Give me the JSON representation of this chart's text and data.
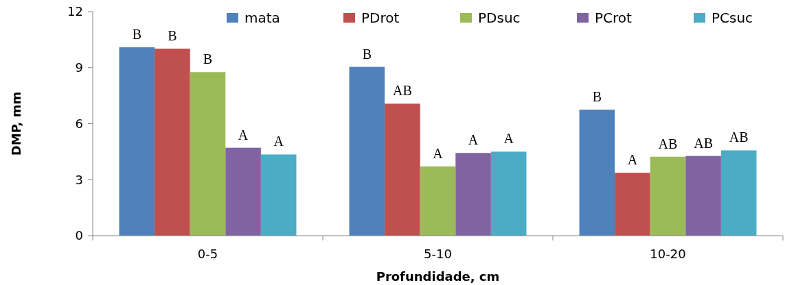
{
  "chart_data": {
    "type": "bar",
    "xlabel": "Profundidade, cm",
    "ylabel": "DMP, mm",
    "categories": [
      "0-5",
      "5-10",
      "10-20"
    ],
    "series": [
      {
        "name": "mata",
        "color": "#4f81bd",
        "values": [
          10.09,
          9.04,
          6.75
        ],
        "value_labels": [
          "B",
          "B",
          "B"
        ]
      },
      {
        "name": "PDrot",
        "color": "#c0504d",
        "values": [
          10.02,
          7.07,
          3.37
        ],
        "value_labels": [
          "B",
          "AB",
          "A"
        ]
      },
      {
        "name": "PDsuc",
        "color": "#9bbb59",
        "values": [
          8.76,
          3.71,
          4.23
        ],
        "value_labels": [
          "B",
          "A",
          "AB"
        ]
      },
      {
        "name": "PCrot",
        "color": "#8064a2",
        "values": [
          4.71,
          4.43,
          4.27
        ],
        "value_labels": [
          "A",
          "A",
          "AB"
        ]
      },
      {
        "name": "PCsuc",
        "color": "#4bacc6",
        "values": [
          4.35,
          4.5,
          4.57
        ],
        "value_labels": [
          "A",
          "A",
          "AB"
        ]
      }
    ],
    "ylim": [
      0,
      12
    ],
    "yticks": [
      0,
      3,
      6,
      9,
      12
    ],
    "grid": false,
    "legend": "top"
  }
}
